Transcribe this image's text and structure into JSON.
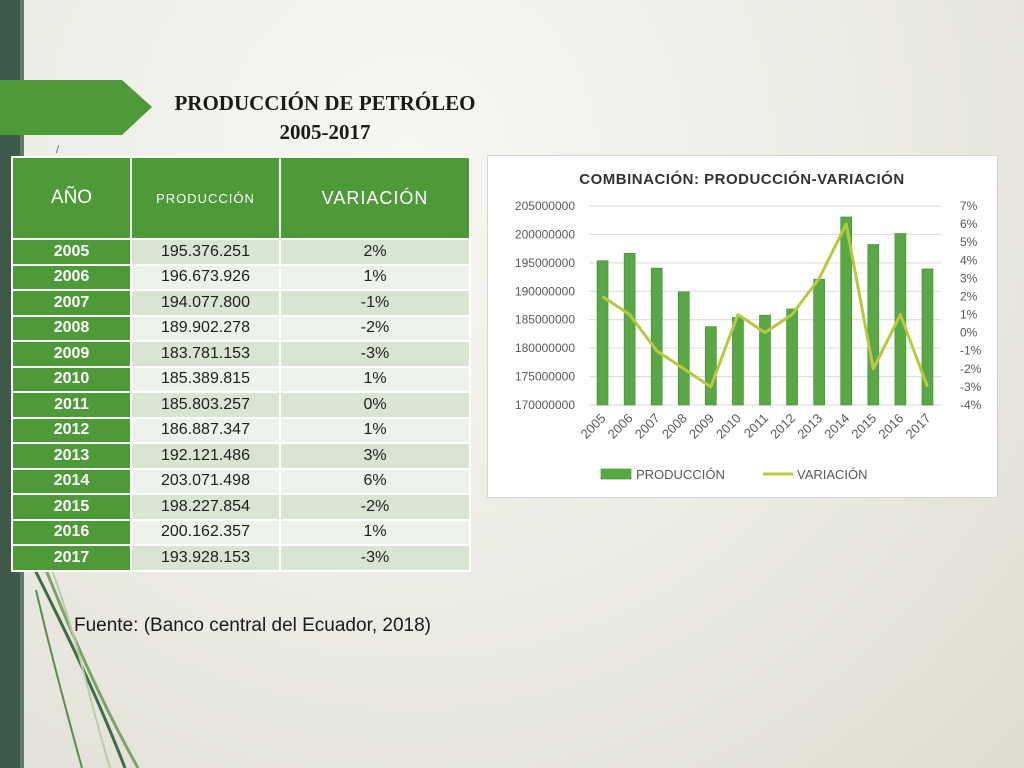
{
  "slide": {
    "title_line1": "PRODUCCIÓN DE PETRÓLEO",
    "title_line2": "2005-2017",
    "tick_mark": "/",
    "source": "Fuente: (Banco central del Ecuador, 2018)"
  },
  "table": {
    "headers": [
      "AÑO",
      "PRODUCCIÓN",
      "VARIACIÓN"
    ],
    "rows": [
      [
        "2005",
        "195.376.251",
        "2%"
      ],
      [
        "2006",
        "196.673.926",
        "1%"
      ],
      [
        "2007",
        "194.077.800",
        "-1%"
      ],
      [
        "2008",
        "189.902.278",
        "-2%"
      ],
      [
        "2009",
        "183.781.153",
        "-3%"
      ],
      [
        "2010",
        "185.389.815",
        "1%"
      ],
      [
        "2011",
        "185.803.257",
        "0%"
      ],
      [
        "2012",
        "186.887.347",
        "1%"
      ],
      [
        "2013",
        "192.121.486",
        "3%"
      ],
      [
        "2014",
        "203.071.498",
        "6%"
      ],
      [
        "2015",
        "198.227.854",
        "-2%"
      ],
      [
        "2016",
        "200.162.357",
        "1%"
      ],
      [
        "2017",
        "193.928.153",
        "-3%"
      ]
    ]
  },
  "colors": {
    "accent_green": "#4e9a38",
    "bar_green": "#5aa845",
    "line_olive": "#b8c940",
    "row_light": "#d9e5d2",
    "row_lighter": "#edf2ea"
  },
  "chart_data": {
    "type": "bar",
    "title": "COMBINACIÓN: PRODUCCIÓN-VARIACIÓN",
    "categories": [
      "2005",
      "2006",
      "2007",
      "2008",
      "2009",
      "2010",
      "2011",
      "2012",
      "2013",
      "2014",
      "2015",
      "2016",
      "2017"
    ],
    "series": [
      {
        "name": "PRODUCCIÓN",
        "type": "bar",
        "axis": "left",
        "values": [
          195376251,
          196673926,
          194077800,
          189902278,
          183781153,
          185389815,
          185803257,
          186887347,
          192121486,
          203071498,
          198227854,
          200162357,
          193928153
        ]
      },
      {
        "name": "VARIACIÓN",
        "type": "line",
        "axis": "right",
        "values": [
          2,
          1,
          -1,
          -2,
          -3,
          1,
          0,
          1,
          3,
          6,
          -2,
          1,
          -3
        ]
      }
    ],
    "y_left_ticks": [
      "205000000",
      "200000000",
      "195000000",
      "190000000",
      "185000000",
      "180000000",
      "175000000",
      "170000000"
    ],
    "y_left_range": [
      170000000,
      205000000
    ],
    "y_right_ticks": [
      "7%",
      "6%",
      "5%",
      "4%",
      "3%",
      "2%",
      "1%",
      "0%",
      "-1%",
      "-2%",
      "-3%",
      "-4%"
    ],
    "y_right_range": [
      -4,
      7
    ],
    "grid": true,
    "legend": "bottom"
  }
}
